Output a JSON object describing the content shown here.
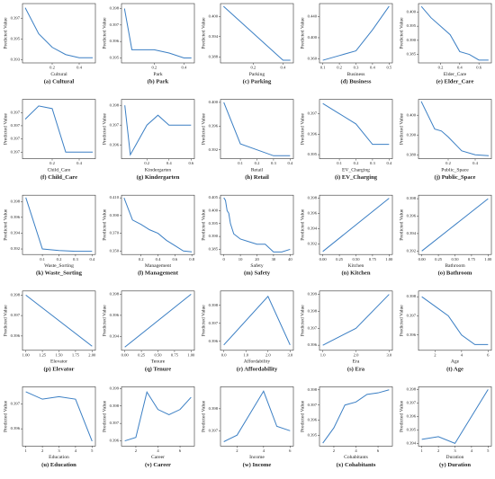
{
  "chart_data": [
    {
      "type": "line",
      "caption": "(a) Cultural",
      "xlabel": "Cultural",
      "ylabel": "Predicted Value",
      "color": "#3b7fc4",
      "x": [
        0,
        0.1,
        0.2,
        0.3,
        0.4,
        0.5
      ],
      "values": [
        0.398,
        0.3955,
        0.3942,
        0.3935,
        0.3932,
        0.3932
      ],
      "xlim": [
        -0.02,
        0.52
      ],
      "ylim": [
        0.3927,
        0.3984
      ],
      "xticks": [
        0.2,
        0.4
      ],
      "yticks": [
        0.393,
        0.395,
        0.397
      ]
    },
    {
      "type": "line",
      "caption": "(b) Park",
      "xlabel": "Park",
      "ylabel": "Predicted Value",
      "color": "#3b7fc4",
      "x": [
        0,
        0.05,
        0.1,
        0.2,
        0.3,
        0.4,
        0.45
      ],
      "values": [
        0.398,
        0.3955,
        0.3955,
        0.3955,
        0.3953,
        0.395,
        0.395
      ],
      "xlim": [
        -0.02,
        0.47
      ],
      "ylim": [
        0.3947,
        0.3983
      ],
      "xticks": [
        0.2,
        0.4
      ],
      "yticks": [
        0.395,
        0.396,
        0.397,
        0.398
      ]
    },
    {
      "type": "line",
      "caption": "(c) Parking",
      "xlabel": "Parking",
      "ylabel": "Predicted Value",
      "color": "#3b7fc4",
      "x": [
        0,
        0.1,
        0.2,
        0.3,
        0.4,
        0.45
      ],
      "values": [
        0.403,
        0.399,
        0.395,
        0.391,
        0.387,
        0.387
      ],
      "xlim": [
        -0.02,
        0.47
      ],
      "ylim": [
        0.3862,
        0.4038
      ],
      "xticks": [
        0.2,
        0.4
      ],
      "yticks": [
        0.388,
        0.394,
        {
          "value": 0.4,
          "label": "0.400"
        }
      ]
    },
    {
      "type": "line",
      "caption": "(d) Business",
      "xlabel": "Business",
      "ylabel": "Predicted Value",
      "color": "#3b7fc4",
      "x": [
        0.1,
        0.2,
        0.3,
        0.4,
        0.5
      ],
      "values": [
        0.357,
        0.366,
        0.375,
        0.415,
        0.46
      ],
      "xlim": [
        0.08,
        0.52
      ],
      "ylim": [
        0.352,
        0.465
      ],
      "xticks": [
        0.1,
        0.2,
        0.3,
        0.4,
        0.5
      ],
      "yticks": [
        {
          "value": 0.36,
          "label": "0.360"
        },
        {
          "value": 0.4,
          "label": "0.400"
        },
        {
          "value": 0.44,
          "label": "0.440"
        }
      ]
    },
    {
      "type": "line",
      "caption": "(e) Elder_Care",
      "xlabel": "Elder_Care",
      "ylabel": "Predicted Value",
      "color": "#3b7fc4",
      "x": [
        0,
        0.1,
        0.2,
        0.3,
        0.4,
        0.5,
        0.6,
        0.7
      ],
      "values": [
        0.402,
        0.398,
        0.395,
        0.392,
        0.386,
        0.385,
        0.383,
        0.383
      ],
      "xlim": [
        -0.03,
        0.73
      ],
      "ylim": [
        0.382,
        0.403
      ],
      "xticks": [
        0.2,
        0.4,
        0.6
      ],
      "yticks": [
        0.385,
        {
          "value": 0.39,
          "label": "0.390"
        },
        0.395,
        {
          "value": 0.4,
          "label": "0.400"
        }
      ]
    },
    {
      "type": "line",
      "caption": "(f) Child_Care",
      "xlabel": "Child_Care",
      "ylabel": "Predicted Value",
      "color": "#3b7fc4",
      "x": [
        0,
        0.1,
        0.2,
        0.3,
        0.4,
        0.5
      ],
      "values": [
        0.39715,
        0.39725,
        0.39723,
        0.3969,
        0.3969,
        0.3969
      ],
      "xlim": [
        -0.02,
        0.52
      ],
      "ylim": [
        0.39685,
        0.3973
      ],
      "xticks": [
        0.2,
        0.4
      ],
      "yticks": [
        {
          "value": 0.3969,
          "label": "0.397"
        },
        {
          "value": 0.397,
          "label": "0.397"
        },
        {
          "value": 0.3971,
          "label": "0.397"
        },
        {
          "value": 0.3972,
          "label": "0.397"
        }
      ]
    },
    {
      "type": "line",
      "caption": "(g) Kindergarten",
      "xlabel": "Kindergarten",
      "ylabel": "Predicted Value",
      "color": "#3b7fc4",
      "x": [
        0,
        0.05,
        0.1,
        0.2,
        0.3,
        0.4,
        0.5,
        0.6
      ],
      "values": [
        0.398,
        0.3955,
        0.396,
        0.397,
        0.3975,
        0.397,
        0.397,
        0.397
      ],
      "xlim": [
        -0.03,
        0.63
      ],
      "ylim": [
        0.3953,
        0.3983
      ],
      "xticks": [
        0.2,
        0.4,
        0.6
      ],
      "yticks": [
        0.396,
        0.397,
        0.398
      ]
    },
    {
      "type": "line",
      "caption": "(h) Retail",
      "xlabel": "Retail",
      "ylabel": "Predicted Value",
      "color": "#3b7fc4",
      "x": [
        0,
        0.1,
        0.2,
        0.3,
        0.4
      ],
      "values": [
        0.4,
        0.393,
        0.392,
        0.391,
        0.391
      ],
      "xlim": [
        -0.02,
        0.42
      ],
      "ylim": [
        0.3905,
        0.4005
      ],
      "xticks": [
        0.1,
        0.2,
        0.3,
        0.4
      ],
      "yticks": [
        0.392,
        0.396,
        {
          "value": 0.4,
          "label": "0.400"
        }
      ]
    },
    {
      "type": "line",
      "caption": "(i) EV_Charging",
      "xlabel": "EV_Charging",
      "ylabel": "Predicted Value",
      "color": "#3b7fc4",
      "x": [
        0,
        0.1,
        0.2,
        0.3,
        0.4
      ],
      "values": [
        0.3975,
        0.397,
        0.3965,
        0.3955,
        0.3955
      ],
      "xlim": [
        -0.02,
        0.42
      ],
      "ylim": [
        0.3948,
        0.3977
      ],
      "xticks": [
        0.1,
        0.2,
        0.3,
        0.4
      ],
      "yticks": [
        0.395,
        0.396,
        0.397
      ]
    },
    {
      "type": "line",
      "caption": "(j) Public_Space",
      "xlabel": "Public_Space",
      "ylabel": "Predicted Value",
      "color": "#3b7fc4",
      "x": [
        0,
        0.1,
        0.15,
        0.2,
        0.3,
        0.4,
        0.5
      ],
      "values": [
        0.407,
        0.393,
        0.392,
        0.389,
        0.382,
        0.38,
        0.3795
      ],
      "xlim": [
        -0.02,
        0.52
      ],
      "ylim": [
        0.378,
        0.408
      ],
      "xticks": [
        0.2,
        0.4
      ],
      "yticks": [
        {
          "value": 0.38,
          "label": "0.380"
        },
        {
          "value": 0.39,
          "label": "0.390"
        },
        {
          "value": 0.4,
          "label": "0.400"
        }
      ]
    },
    {
      "type": "line",
      "caption": "(k) Waste_Sorting",
      "xlabel": "Waste_Sorting",
      "ylabel": "Predicted Value",
      "color": "#3b7fc4",
      "x": [
        0,
        0.1,
        0.2,
        0.3,
        0.4
      ],
      "values": [
        0.3985,
        0.392,
        0.3918,
        0.3917,
        0.3917
      ],
      "xlim": [
        -0.02,
        0.42
      ],
      "ylim": [
        0.3913,
        0.3988
      ],
      "xticks": [
        0.1,
        0.2,
        0.3,
        0.4
      ],
      "yticks": [
        0.392,
        0.394,
        0.396,
        0.398
      ]
    },
    {
      "type": "line",
      "caption": "(l) Management",
      "xlabel": "Management",
      "ylabel": "Predicted Value",
      "color": "#3b7fc4",
      "x": [
        0,
        0.1,
        0.2,
        0.3,
        0.4,
        0.5,
        0.6,
        0.7,
        0.8
      ],
      "values": [
        0.41,
        0.385,
        0.38,
        0.374,
        0.37,
        0.362,
        0.356,
        0.35,
        0.349
      ],
      "xlim": [
        -0.03,
        0.83
      ],
      "ylim": [
        0.346,
        0.413
      ],
      "xticks": [
        0.2,
        0.4,
        0.6,
        0.8
      ],
      "yticks": [
        {
          "value": 0.35,
          "label": "0.350"
        },
        {
          "value": 0.37,
          "label": "0.370"
        },
        {
          "value": 0.39,
          "label": "0.390"
        },
        {
          "value": 0.41,
          "label": "0.410"
        }
      ]
    },
    {
      "type": "line",
      "caption": "(m) Safety",
      "xlabel": "Safety",
      "ylabel": "Predicted Value",
      "color": "#3b7fc4",
      "x": [
        0,
        1,
        2,
        3,
        4,
        5,
        6,
        8,
        10,
        15,
        20,
        25,
        30,
        35,
        40
      ],
      "values": [
        0.405,
        0.404,
        0.4,
        0.399,
        0.395,
        0.393,
        0.391,
        0.39,
        0.389,
        0.388,
        0.387,
        0.387,
        0.384,
        0.384,
        0.385
      ],
      "xlim": [
        -2,
        42
      ],
      "ylim": [
        0.383,
        0.406
      ],
      "xticks": [
        0,
        10,
        20,
        30,
        40
      ],
      "yticks": [
        0.385,
        {
          "value": 0.39,
          "label": "0.390"
        },
        0.395,
        {
          "value": 0.4,
          "label": "0.400"
        },
        0.405
      ]
    },
    {
      "type": "line",
      "caption": "(n) Kitchen",
      "xlabel": "Kitchen",
      "ylabel": "Predicted Value",
      "color": "#3b7fc4",
      "x": [
        0,
        1
      ],
      "values": [
        0.391,
        0.398
      ],
      "xlim": [
        -0.05,
        1.05
      ],
      "ylim": [
        0.3906,
        0.3984
      ],
      "xticks": [
        {
          "value": 0,
          "label": "0.00"
        },
        0.25,
        {
          "value": 0.5,
          "label": "0.50"
        },
        0.75,
        {
          "value": 1,
          "label": "1.00"
        }
      ],
      "yticks": [
        0.392,
        0.394,
        0.396,
        0.398
      ]
    },
    {
      "type": "line",
      "caption": "(o) Bathroom",
      "xlabel": "Bathroom",
      "ylabel": "Predicted Value",
      "color": "#3b7fc4",
      "x": [
        0,
        1
      ],
      "values": [
        0.392,
        0.398
      ],
      "xlim": [
        -0.05,
        1.05
      ],
      "ylim": [
        0.3916,
        0.3984
      ],
      "xticks": [
        {
          "value": 0,
          "label": "0.00"
        },
        0.25,
        {
          "value": 0.5,
          "label": "0.50"
        },
        0.75,
        {
          "value": 1,
          "label": "1.00"
        }
      ],
      "yticks": [
        0.392,
        0.394,
        0.396,
        0.398
      ]
    },
    {
      "type": "line",
      "caption": "(p) Elevator",
      "xlabel": "Elevator",
      "ylabel": "Predicted Value",
      "color": "#3b7fc4",
      "x": [
        1,
        2
      ],
      "values": [
        0.398,
        0.3955
      ],
      "xlim": [
        0.95,
        2.05
      ],
      "ylim": [
        0.3953,
        0.3982
      ],
      "xticks": [
        {
          "value": 1,
          "label": "1.00"
        },
        1.25,
        {
          "value": 1.5,
          "label": "1.50"
        },
        1.75,
        {
          "value": 2,
          "label": "2.00"
        }
      ],
      "yticks": [
        0.396,
        0.397,
        0.398
      ]
    },
    {
      "type": "line",
      "caption": "(q) Tenure",
      "xlabel": "Tenure",
      "ylabel": "Predicted Value",
      "color": "#3b7fc4",
      "x": [
        0,
        1
      ],
      "values": [
        0.393,
        0.398
      ],
      "xlim": [
        -0.05,
        1.05
      ],
      "ylim": [
        0.3927,
        0.3983
      ],
      "xticks": [
        {
          "value": 0,
          "label": "0.00"
        },
        0.25,
        {
          "value": 0.5,
          "label": "0.50"
        },
        0.75,
        {
          "value": 1,
          "label": "1.00"
        }
      ],
      "yticks": [
        0.394,
        0.396,
        0.398
      ]
    },
    {
      "type": "line",
      "caption": "(r) Affordability",
      "xlabel": "Affordability",
      "ylabel": "Predicted Value",
      "color": "#3b7fc4",
      "x": [
        0,
        2,
        3
      ],
      "values": [
        0.3958,
        0.3985,
        0.3958
      ],
      "xlim": [
        -0.15,
        3.15
      ],
      "ylim": [
        0.3955,
        0.3988
      ],
      "xticks": [
        {
          "value": 0,
          "label": "0.0"
        },
        {
          "value": 1,
          "label": "1.0"
        },
        {
          "value": 2,
          "label": "2.0"
        },
        {
          "value": 3,
          "label": "3.0"
        }
      ],
      "yticks": [
        0.396,
        0.397,
        0.398
      ]
    },
    {
      "type": "line",
      "caption": "(s) Era",
      "xlabel": "Era",
      "ylabel": "Predicted Value",
      "color": "#3b7fc4",
      "x": [
        1,
        2,
        3
      ],
      "values": [
        0.396,
        0.397,
        0.399
      ],
      "xlim": [
        0.9,
        3.1
      ],
      "ylim": [
        0.3957,
        0.3992
      ],
      "xticks": [
        {
          "value": 1,
          "label": "1.0"
        },
        {
          "value": 2,
          "label": "2.0"
        },
        {
          "value": 3,
          "label": "3.0"
        }
      ],
      "yticks": [
        0.396,
        0.397,
        0.398,
        0.399
      ]
    },
    {
      "type": "line",
      "caption": "(t) Age",
      "xlabel": "Age",
      "ylabel": "Predicted Value",
      "color": "#3b7fc4",
      "x": [
        1,
        2,
        3,
        4,
        5,
        6
      ],
      "values": [
        0.398,
        0.3975,
        0.397,
        0.396,
        0.3955,
        0.3955
      ],
      "xlim": [
        0.75,
        6.25
      ],
      "ylim": [
        0.3952,
        0.3983
      ],
      "xticks": [
        2,
        4,
        6
      ],
      "yticks": [
        0.396,
        0.397,
        0.398
      ]
    },
    {
      "type": "line",
      "caption": "(u) Education",
      "xlabel": "Education",
      "ylabel": "Predicted Value",
      "color": "#3b7fc4",
      "x": [
        1,
        2,
        3,
        4,
        5
      ],
      "values": [
        0.3975,
        0.3972,
        0.3973,
        0.3972,
        0.3955
      ],
      "xlim": [
        0.8,
        5.2
      ],
      "ylim": [
        0.3953,
        0.3977
      ],
      "xticks": [
        1,
        2,
        3,
        4,
        5
      ],
      "yticks": [
        0.396,
        0.397
      ]
    },
    {
      "type": "line",
      "caption": "(v) Career",
      "xlabel": "Career",
      "ylabel": "Predicted Value",
      "color": "#3b7fc4",
      "x": [
        1,
        2,
        3,
        4,
        5,
        6,
        7
      ],
      "values": [
        0.396,
        0.3962,
        0.3988,
        0.3978,
        0.3975,
        0.3978,
        0.3985
      ],
      "xlim": [
        0.7,
        7.3
      ],
      "ylim": [
        0.3957,
        0.3991
      ],
      "xticks": [
        2,
        4,
        6
      ],
      "yticks": [
        0.396,
        0.397,
        0.398,
        0.399
      ]
    },
    {
      "type": "line",
      "caption": "(w) Income",
      "xlabel": "Income",
      "ylabel": "Predicted Value",
      "color": "#3b7fc4",
      "x": [
        1,
        2,
        3,
        4,
        5,
        6
      ],
      "values": [
        0.3965,
        0.3968,
        0.3978,
        0.3988,
        0.3972,
        0.397
      ],
      "xlim": [
        0.75,
        6.25
      ],
      "ylim": [
        0.3963,
        0.399
      ],
      "xticks": [
        2,
        4,
        6
      ],
      "yticks": [
        0.397,
        0.398
      ]
    },
    {
      "type": "line",
      "caption": "(x) Cohabitants",
      "xlabel": "Cohabitants",
      "ylabel": "Predicted Value",
      "color": "#3b7fc4",
      "x": [
        1,
        2,
        3,
        4,
        5,
        6,
        7
      ],
      "values": [
        0.3945,
        0.3955,
        0.397,
        0.3972,
        0.3977,
        0.3978,
        0.398
      ],
      "xlim": [
        0.7,
        7.3
      ],
      "ylim": [
        0.3943,
        0.3982
      ],
      "xticks": [
        2,
        4,
        6
      ],
      "yticks": [
        0.395,
        0.396,
        0.397,
        0.398
      ]
    },
    {
      "type": "line",
      "caption": "(y) Duration",
      "xlabel": "Duration",
      "ylabel": "Predicted Value",
      "color": "#3b7fc4",
      "x": [
        1,
        2,
        3,
        4,
        5
      ],
      "values": [
        0.3943,
        0.3945,
        0.394,
        0.396,
        0.398
      ],
      "xlim": [
        0.8,
        5.2
      ],
      "ylim": [
        0.3938,
        0.3982
      ],
      "xticks": [
        1,
        2,
        3,
        4,
        5
      ],
      "yticks": [
        0.394,
        0.395,
        0.396,
        0.397,
        0.398
      ]
    }
  ]
}
